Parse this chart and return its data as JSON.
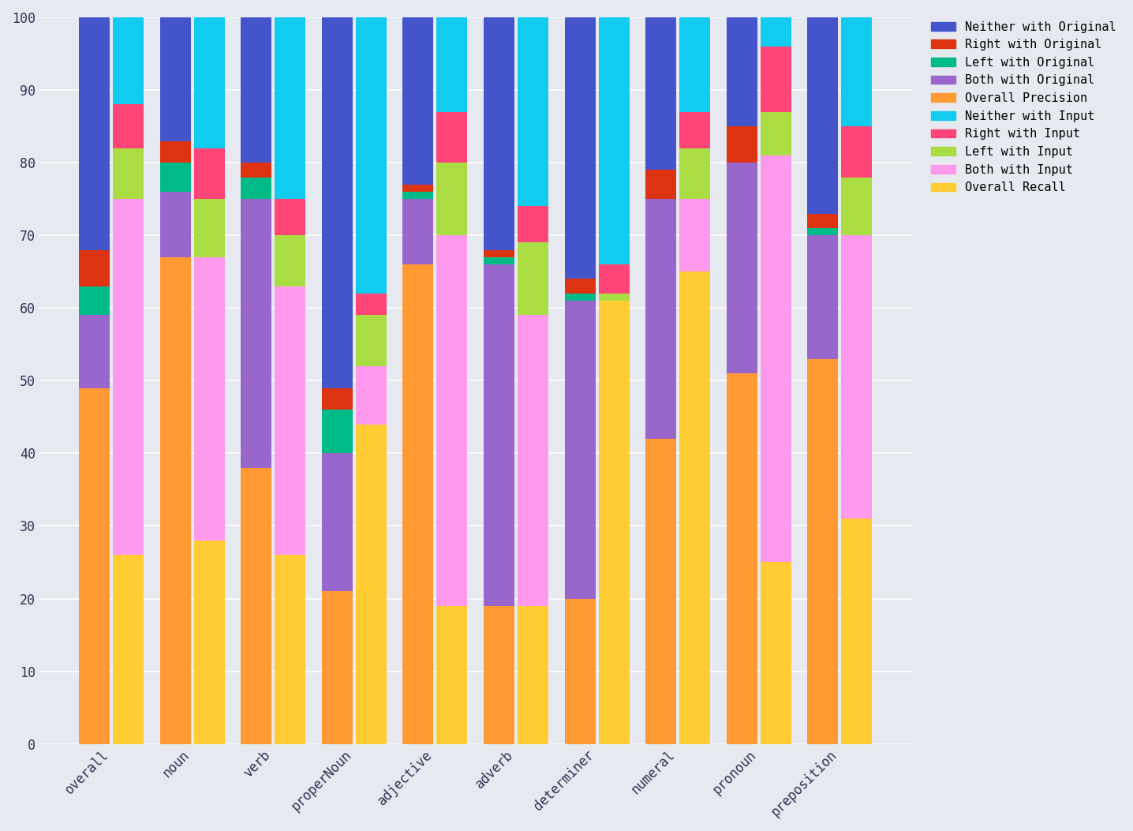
{
  "categories": [
    "overall",
    "noun",
    "verb",
    "properNoun",
    "adjective",
    "adverb",
    "determiner",
    "numeral",
    "pronoun",
    "preposition"
  ],
  "precision_bars": {
    "overall_precision": [
      49,
      67,
      38,
      21,
      66,
      19,
      20,
      42,
      51,
      53
    ],
    "both_with_original": [
      10,
      9,
      37,
      19,
      9,
      47,
      41,
      33,
      29,
      17
    ],
    "left_with_original": [
      4,
      4,
      3,
      6,
      1,
      1,
      1,
      0,
      0,
      1
    ],
    "right_with_original": [
      5,
      3,
      2,
      3,
      1,
      1,
      2,
      4,
      5,
      2
    ],
    "neither_with_original": [
      32,
      17,
      20,
      51,
      23,
      32,
      36,
      21,
      15,
      27
    ]
  },
  "recall_bars": {
    "overall_recall": [
      26,
      28,
      26,
      44,
      19,
      19,
      61,
      65,
      25,
      31
    ],
    "both_with_input": [
      49,
      39,
      37,
      8,
      51,
      40,
      0,
      10,
      56,
      39
    ],
    "left_with_input": [
      7,
      8,
      7,
      7,
      10,
      10,
      1,
      7,
      6,
      8
    ],
    "right_with_input": [
      6,
      7,
      5,
      3,
      7,
      5,
      4,
      5,
      9,
      7
    ],
    "neither_with_input": [
      12,
      18,
      25,
      38,
      13,
      26,
      34,
      13,
      4,
      15
    ]
  },
  "precision_colors": {
    "overall_precision": "#FF9933",
    "both_with_original": "#9966CC",
    "left_with_original": "#00BB88",
    "right_with_original": "#DD3311",
    "neither_with_original": "#4455CC"
  },
  "recall_colors": {
    "overall_recall": "#FFCC33",
    "both_with_input": "#FF99EE",
    "left_with_input": "#AADD44",
    "right_with_input": "#FF4477",
    "neither_with_input": "#11CCEE"
  },
  "legend_labels": [
    "Neither with Original",
    "Right with Original",
    "Left with Original",
    "Both with Original",
    "Overall Precision",
    "Neither with Input",
    "Right with Input",
    "Left with Input",
    "Both with Input",
    "Overall Recall"
  ],
  "legend_colors": [
    "#4455CC",
    "#DD3311",
    "#00BB88",
    "#9966CC",
    "#FF9933",
    "#11CCEE",
    "#FF4477",
    "#AADD44",
    "#FF99EE",
    "#FFCC33"
  ],
  "background_color": "#E6E9F0",
  "ylim": [
    0,
    100
  ],
  "yticks": [
    0,
    10,
    20,
    30,
    40,
    50,
    60,
    70,
    80,
    90,
    100
  ]
}
